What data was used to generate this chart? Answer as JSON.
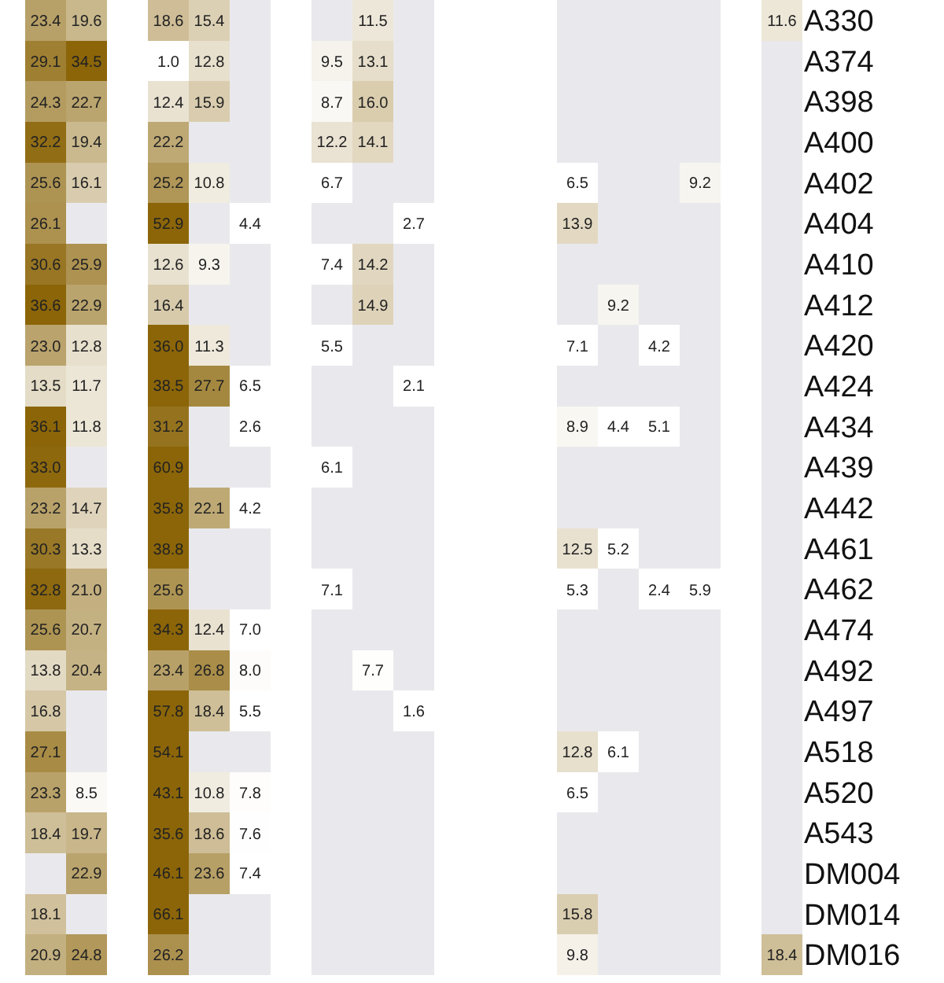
{
  "chart_data": {
    "type": "heatmap",
    "categories": [
      null,
      null,
      null,
      null,
      null,
      null,
      null,
      null,
      null,
      null,
      null,
      null,
      null,
      null,
      null,
      null,
      null,
      null,
      null
    ],
    "y_categories": [
      "A330",
      "A374",
      "A398",
      "A400",
      "A402",
      "A404",
      "A410",
      "A412",
      "A420",
      "A424",
      "A434",
      "A439",
      "A442",
      "A461",
      "A462",
      "A474",
      "A492",
      "A497",
      "A518",
      "A520",
      "A543",
      "DM004",
      "DM014",
      "DM016"
    ],
    "cells": [
      [
        23.4,
        19.6,
        null,
        18.6,
        15.4,
        null,
        null,
        null,
        11.5,
        null,
        null,
        null,
        null,
        null,
        null,
        null,
        null,
        null,
        11.6
      ],
      [
        29.1,
        34.5,
        null,
        1.0,
        12.8,
        null,
        null,
        9.5,
        13.1,
        null,
        null,
        null,
        null,
        null,
        null,
        null,
        null,
        null,
        null
      ],
      [
        24.3,
        22.7,
        null,
        12.4,
        15.9,
        null,
        null,
        8.7,
        16.0,
        null,
        null,
        null,
        null,
        null,
        null,
        null,
        null,
        null,
        null
      ],
      [
        32.2,
        19.4,
        null,
        22.2,
        null,
        null,
        null,
        12.2,
        14.1,
        null,
        null,
        null,
        null,
        null,
        null,
        null,
        null,
        null,
        null
      ],
      [
        25.6,
        16.1,
        null,
        25.2,
        10.8,
        null,
        null,
        6.7,
        null,
        null,
        null,
        null,
        null,
        6.5,
        null,
        null,
        9.2,
        null,
        null
      ],
      [
        26.1,
        null,
        null,
        52.9,
        null,
        4.4,
        null,
        null,
        null,
        2.7,
        null,
        null,
        null,
        13.9,
        null,
        null,
        null,
        null,
        null
      ],
      [
        30.6,
        25.9,
        null,
        12.6,
        9.3,
        null,
        null,
        7.4,
        14.2,
        null,
        null,
        null,
        null,
        null,
        null,
        null,
        null,
        null,
        null
      ],
      [
        36.6,
        22.9,
        null,
        16.4,
        null,
        null,
        null,
        null,
        14.9,
        null,
        null,
        null,
        null,
        null,
        9.2,
        null,
        null,
        null,
        null
      ],
      [
        23.0,
        12.8,
        null,
        36.0,
        11.3,
        null,
        null,
        5.5,
        null,
        null,
        null,
        null,
        null,
        7.1,
        null,
        4.2,
        null,
        null,
        null
      ],
      [
        13.5,
        11.7,
        null,
        38.5,
        27.7,
        6.5,
        null,
        null,
        null,
        2.1,
        null,
        null,
        null,
        null,
        null,
        null,
        null,
        null,
        null
      ],
      [
        36.1,
        11.8,
        null,
        31.2,
        null,
        2.6,
        null,
        null,
        null,
        null,
        null,
        null,
        null,
        8.9,
        4.4,
        5.1,
        null,
        null,
        null
      ],
      [
        33.0,
        null,
        null,
        60.9,
        null,
        null,
        null,
        6.1,
        null,
        null,
        null,
        null,
        null,
        null,
        null,
        null,
        null,
        null,
        null
      ],
      [
        23.2,
        14.7,
        null,
        35.8,
        22.1,
        4.2,
        null,
        null,
        null,
        null,
        null,
        null,
        null,
        null,
        null,
        null,
        null,
        null,
        null
      ],
      [
        30.3,
        13.3,
        null,
        38.8,
        null,
        null,
        null,
        null,
        null,
        null,
        null,
        null,
        null,
        12.5,
        5.2,
        null,
        null,
        null,
        null
      ],
      [
        32.8,
        21.0,
        null,
        25.6,
        null,
        null,
        null,
        7.1,
        null,
        null,
        null,
        null,
        null,
        5.3,
        null,
        2.4,
        5.9,
        null,
        null
      ],
      [
        25.6,
        20.7,
        null,
        34.3,
        12.4,
        7.0,
        null,
        null,
        null,
        null,
        null,
        null,
        null,
        null,
        null,
        null,
        null,
        null,
        null
      ],
      [
        13.8,
        20.4,
        null,
        23.4,
        26.8,
        8.0,
        null,
        null,
        7.7,
        null,
        null,
        null,
        null,
        null,
        null,
        null,
        null,
        null,
        null
      ],
      [
        16.8,
        null,
        null,
        57.8,
        18.4,
        5.5,
        null,
        null,
        null,
        1.6,
        null,
        null,
        null,
        null,
        null,
        null,
        null,
        null,
        null
      ],
      [
        27.1,
        null,
        null,
        54.1,
        null,
        null,
        null,
        null,
        null,
        null,
        null,
        null,
        null,
        12.8,
        6.1,
        null,
        null,
        null,
        null
      ],
      [
        23.3,
        8.5,
        null,
        43.1,
        10.8,
        7.8,
        null,
        null,
        null,
        null,
        null,
        null,
        null,
        6.5,
        null,
        null,
        null,
        null,
        null
      ],
      [
        18.4,
        19.7,
        null,
        35.6,
        18.6,
        7.6,
        null,
        null,
        null,
        null,
        null,
        null,
        null,
        null,
        null,
        null,
        null,
        null,
        null
      ],
      [
        null,
        22.9,
        null,
        46.1,
        23.6,
        7.4,
        null,
        null,
        null,
        null,
        null,
        null,
        null,
        null,
        null,
        null,
        null,
        null,
        null
      ],
      [
        18.1,
        null,
        null,
        66.1,
        null,
        null,
        null,
        null,
        null,
        null,
        null,
        null,
        null,
        15.8,
        null,
        null,
        null,
        null,
        null
      ],
      [
        20.9,
        24.8,
        null,
        26.2,
        null,
        null,
        null,
        null,
        null,
        null,
        null,
        null,
        null,
        9.8,
        null,
        null,
        null,
        null,
        18.4
      ]
    ],
    "cell_labels": [
      [
        "23.4",
        "19.6",
        null,
        "18.6",
        "15.4",
        null,
        null,
        null,
        "11.5",
        null,
        null,
        null,
        null,
        null,
        null,
        null,
        null,
        null,
        "11.6"
      ],
      [
        "29.1",
        "34.5",
        null,
        "1.0",
        "12.8",
        null,
        null,
        "9.5",
        "13.1",
        null,
        null,
        null,
        null,
        null,
        null,
        null,
        null,
        null,
        null
      ],
      [
        "24.3",
        "22.7",
        null,
        "12.4",
        "15.9",
        null,
        null,
        "8.7",
        "16.0",
        null,
        null,
        null,
        null,
        null,
        null,
        null,
        null,
        null,
        null
      ],
      [
        "32.2",
        "19.4",
        null,
        "22.2",
        null,
        null,
        null,
        "12.2",
        "14.1",
        null,
        null,
        null,
        null,
        null,
        null,
        null,
        null,
        null,
        null
      ],
      [
        "25.6",
        "16.1",
        null,
        "25.2",
        "10.8",
        null,
        null,
        "6.7",
        null,
        null,
        null,
        null,
        null,
        "6.5",
        null,
        null,
        "9.2",
        null,
        null
      ],
      [
        "26.1",
        null,
        null,
        "52.9",
        null,
        "4.4",
        null,
        null,
        null,
        "2.7",
        null,
        null,
        null,
        "13.9",
        null,
        null,
        null,
        null,
        null
      ],
      [
        "30.6",
        "25.9",
        null,
        "12.6",
        "9.3",
        null,
        null,
        "7.4",
        "14.2",
        null,
        null,
        null,
        null,
        null,
        null,
        null,
        null,
        null,
        null
      ],
      [
        "36.6",
        "22.9",
        null,
        "16.4",
        null,
        null,
        null,
        null,
        "14.9",
        null,
        null,
        null,
        null,
        null,
        "9.2",
        null,
        null,
        null,
        null
      ],
      [
        "23.0",
        "12.8",
        null,
        "36.0",
        "11.3",
        null,
        null,
        "5.5",
        null,
        null,
        null,
        null,
        null,
        "7.1",
        null,
        "4.2",
        null,
        null,
        null
      ],
      [
        "13.5",
        "11.7",
        null,
        "38.5",
        "27.7",
        "6.5",
        null,
        null,
        null,
        "2.1",
        null,
        null,
        null,
        null,
        null,
        null,
        null,
        null,
        null
      ],
      [
        "36.1",
        "11.8",
        null,
        "31.2",
        null,
        "2.6",
        null,
        null,
        null,
        null,
        null,
        null,
        null,
        "8.9",
        "4.4",
        "5.1",
        null,
        null,
        null
      ],
      [
        "33.0",
        null,
        null,
        "60.9",
        null,
        null,
        null,
        "6.1",
        null,
        null,
        null,
        null,
        null,
        null,
        null,
        null,
        null,
        null,
        null
      ],
      [
        "23.2",
        "14.7",
        null,
        "35.8",
        "22.1",
        "4.2",
        null,
        null,
        null,
        null,
        null,
        null,
        null,
        null,
        null,
        null,
        null,
        null,
        null
      ],
      [
        "30.3",
        "13.3",
        null,
        "38.8",
        null,
        null,
        null,
        null,
        null,
        null,
        null,
        null,
        null,
        "12.5",
        "5.2",
        null,
        null,
        null,
        null
      ],
      [
        "32.8",
        "21.0",
        null,
        "25.6",
        null,
        null,
        null,
        "7.1",
        null,
        null,
        null,
        null,
        null,
        "5.3",
        null,
        "2.4",
        "5.9",
        null,
        null
      ],
      [
        "25.6",
        "20.7",
        null,
        "34.3",
        "12.4",
        "7.0",
        null,
        null,
        null,
        null,
        null,
        null,
        null,
        null,
        null,
        null,
        null,
        null,
        null
      ],
      [
        "13.8",
        "20.4",
        null,
        "23.4",
        "26.8",
        "8.0",
        null,
        null,
        "7.7",
        null,
        null,
        null,
        null,
        null,
        null,
        null,
        null,
        null,
        null
      ],
      [
        "16.8",
        null,
        null,
        "57.8",
        "18.4",
        "5.5",
        null,
        null,
        null,
        "1.6",
        null,
        null,
        null,
        null,
        null,
        null,
        null,
        null,
        null
      ],
      [
        "27.1",
        null,
        null,
        "54.1",
        null,
        null,
        null,
        null,
        null,
        null,
        null,
        null,
        null,
        "12.8",
        "6.1",
        null,
        null,
        null,
        null
      ],
      [
        "23.3",
        "8.5",
        null,
        "43.1",
        "10.8",
        "7.8",
        null,
        null,
        null,
        null,
        null,
        null,
        null,
        "6.5",
        null,
        null,
        null,
        null,
        null
      ],
      [
        "18.4",
        "19.7",
        null,
        "35.6",
        "18.6",
        "7.6",
        null,
        null,
        null,
        null,
        null,
        null,
        null,
        null,
        null,
        null,
        null,
        null,
        null
      ],
      [
        null,
        "22.9",
        null,
        "46.1",
        "23.6",
        "7.4",
        null,
        null,
        null,
        null,
        null,
        null,
        null,
        null,
        null,
        null,
        null,
        null,
        null
      ],
      [
        "18.1",
        null,
        null,
        "66.1",
        null,
        null,
        null,
        null,
        null,
        null,
        null,
        null,
        null,
        "15.8",
        null,
        null,
        null,
        null,
        null
      ],
      [
        "20.9",
        "24.8",
        null,
        "26.2",
        null,
        null,
        null,
        null,
        null,
        null,
        null,
        null,
        null,
        "9.8",
        null,
        null,
        null,
        null,
        "18.4"
      ]
    ],
    "data_labels": true,
    "tick_labels": "y"
  }
}
